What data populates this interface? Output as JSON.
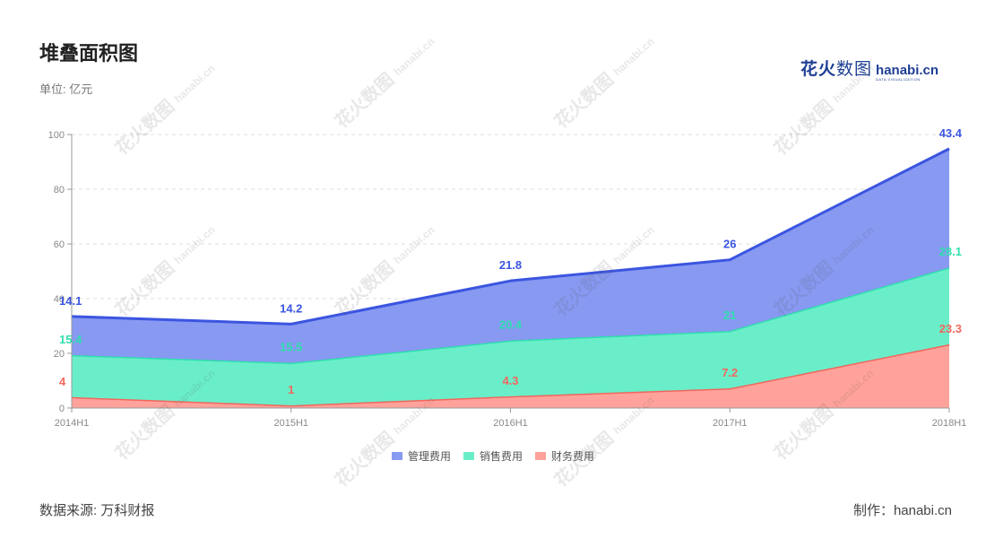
{
  "header": {
    "title": "堆叠面积图",
    "unit": "单位: 亿元"
  },
  "logo": {
    "brand_cn": "花火",
    "brand_cn_light": "数图",
    "brand_en": "hanabi.cn",
    "tagline": "DATA VISUALIZATION"
  },
  "footer": {
    "source": "数据来源: 万科财报",
    "credit": "制作：hanabi.cn"
  },
  "colors": {
    "mgmt_fill": "#8799f1",
    "mgmt_line": "#3b55e0",
    "sales_fill": "#6aeec9",
    "sales_line": "#2fdfae",
    "fin_fill": "#ffa29b",
    "fin_line": "#f2665d"
  },
  "chart_data": {
    "type": "area",
    "stacked": true,
    "title": "堆叠面积图",
    "unit": "单位: 亿元",
    "categories": [
      "2014H1",
      "2015H1",
      "2016H1",
      "2017H1",
      "2018H1"
    ],
    "ylim": [
      0,
      100
    ],
    "yticks": [
      0,
      20,
      40,
      60,
      80,
      100
    ],
    "grid": true,
    "legend_position": "bottom",
    "series": [
      {
        "name": "财务费用",
        "values": [
          4,
          1,
          4.3,
          7.2,
          23.3
        ],
        "color": "#f2665d",
        "fill": "#ffa29b"
      },
      {
        "name": "销售费用",
        "values": [
          15.4,
          15.5,
          20.4,
          21,
          28.1
        ],
        "color": "#2fdfae",
        "fill": "#6aeec9"
      },
      {
        "name": "管理费用",
        "values": [
          14.1,
          14.2,
          21.8,
          26,
          43.4
        ],
        "color": "#3b55e0",
        "fill": "#8799f1"
      }
    ],
    "legend_order": [
      "管理费用",
      "销售费用",
      "财务费用"
    ]
  }
}
